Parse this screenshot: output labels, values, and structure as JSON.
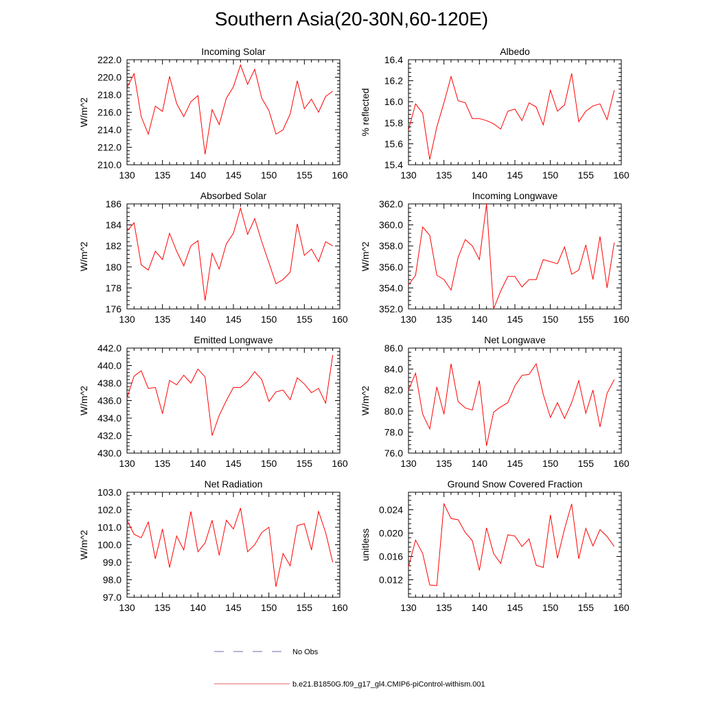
{
  "title": "Southern Asia(20-30N,60-120E)",
  "legend": [
    {
      "label": "No Obs",
      "color": "#6a6ab0",
      "dash": true
    },
    {
      "label": "b.e21.B1850G.f09_g17_gl4.CMIP6-piControl-withism.001",
      "color": "#e06060",
      "dash": false
    }
  ],
  "colors": {
    "series": "#ff0000"
  },
  "chart_data": [
    {
      "type": "line",
      "title": "Incoming Solar",
      "ylabel": "W/m^2",
      "xlim": [
        130,
        160
      ],
      "xticks": [
        130,
        135,
        140,
        145,
        150,
        155,
        160
      ],
      "ylim": [
        210,
        222
      ],
      "yticks": [
        "210.0",
        "212.0",
        "214.0",
        "216.0",
        "218.0",
        "220.0",
        "222.0"
      ],
      "x": [
        130,
        131,
        132,
        133,
        134,
        135,
        136,
        137,
        138,
        139,
        140,
        141,
        142,
        143,
        144,
        145,
        146,
        147,
        148,
        149,
        150,
        151,
        152,
        153,
        154,
        155,
        156,
        157,
        158,
        159
      ],
      "series": [
        {
          "values": [
            218.8,
            220.4,
            215.5,
            213.5,
            216.7,
            216.1,
            220.1,
            217.0,
            215.5,
            217.2,
            217.9,
            211.2,
            216.3,
            214.6,
            217.6,
            218.9,
            221.4,
            219.2,
            220.9,
            217.6,
            216.2,
            213.5,
            214.0,
            215.8,
            219.6,
            216.4,
            217.5,
            216.0,
            217.8,
            218.4
          ]
        }
      ]
    },
    {
      "type": "line",
      "title": "Albedo",
      "ylabel": "% reflected",
      "xlim": [
        130,
        160
      ],
      "xticks": [
        130,
        135,
        140,
        145,
        150,
        155,
        160
      ],
      "ylim": [
        15.4,
        16.4
      ],
      "yticks": [
        "15.4",
        "15.6",
        "15.8",
        "16.0",
        "16.2",
        "16.4"
      ],
      "x": [
        130,
        131,
        132,
        133,
        134,
        135,
        136,
        137,
        138,
        139,
        140,
        141,
        142,
        143,
        144,
        145,
        146,
        147,
        148,
        149,
        150,
        151,
        152,
        153,
        154,
        155,
        156,
        157,
        158,
        159
      ],
      "series": [
        {
          "values": [
            15.73,
            15.98,
            15.89,
            15.45,
            15.76,
            15.99,
            16.24,
            16.01,
            15.99,
            15.84,
            15.84,
            15.82,
            15.79,
            15.74,
            15.91,
            15.93,
            15.82,
            15.99,
            15.95,
            15.78,
            16.11,
            15.91,
            15.97,
            16.27,
            15.81,
            15.91,
            15.96,
            15.98,
            15.83,
            16.11
          ]
        }
      ]
    },
    {
      "type": "line",
      "title": "Absorbed Solar",
      "ylabel": "W/m^2",
      "xlim": [
        130,
        160
      ],
      "xticks": [
        130,
        135,
        140,
        145,
        150,
        155,
        160
      ],
      "ylim": [
        176,
        186
      ],
      "yticks": [
        "176",
        "178",
        "180",
        "182",
        "184",
        "186"
      ],
      "x": [
        130,
        131,
        132,
        133,
        134,
        135,
        136,
        137,
        138,
        139,
        140,
        141,
        142,
        143,
        144,
        145,
        146,
        147,
        148,
        149,
        150,
        151,
        152,
        153,
        154,
        155,
        156,
        157,
        158,
        159
      ],
      "series": [
        {
          "values": [
            183.4,
            184.2,
            180.2,
            179.7,
            181.5,
            180.7,
            183.2,
            181.5,
            180.1,
            182.0,
            182.5,
            176.8,
            181.3,
            179.8,
            182.2,
            183.2,
            185.6,
            183.1,
            184.6,
            182.4,
            180.4,
            178.4,
            178.8,
            179.5,
            184.1,
            181.1,
            181.7,
            180.5,
            182.4,
            182.0
          ]
        }
      ]
    },
    {
      "type": "line",
      "title": "Incoming Longwave",
      "ylabel": "W/m^2",
      "xlim": [
        130,
        160
      ],
      "xticks": [
        130,
        135,
        140,
        145,
        150,
        155,
        160
      ],
      "ylim": [
        352,
        362
      ],
      "yticks": [
        "352.0",
        "354.0",
        "356.0",
        "358.0",
        "360.0",
        "362.0"
      ],
      "x": [
        130,
        131,
        132,
        133,
        134,
        135,
        136,
        137,
        138,
        139,
        140,
        141,
        142,
        143,
        144,
        145,
        146,
        147,
        148,
        149,
        150,
        151,
        152,
        153,
        154,
        155,
        156,
        157,
        158,
        159
      ],
      "series": [
        {
          "values": [
            354.3,
            355.2,
            359.8,
            359.0,
            355.2,
            354.8,
            353.8,
            356.9,
            358.6,
            358.0,
            356.7,
            362.0,
            352.0,
            353.7,
            355.1,
            355.1,
            354.1,
            354.8,
            354.8,
            356.7,
            356.5,
            356.3,
            357.9,
            355.3,
            355.7,
            358.1,
            354.8,
            358.9,
            354.0,
            358.3
          ]
        }
      ]
    },
    {
      "type": "line",
      "title": "Emitted Longwave",
      "ylabel": "W/m^2",
      "xlim": [
        130,
        160
      ],
      "xticks": [
        130,
        135,
        140,
        145,
        150,
        155,
        160
      ],
      "ylim": [
        430,
        442
      ],
      "yticks": [
        "430.0",
        "432.0",
        "434.0",
        "436.0",
        "438.0",
        "440.0",
        "442.0"
      ],
      "x": [
        130,
        131,
        132,
        133,
        134,
        135,
        136,
        137,
        138,
        139,
        140,
        141,
        142,
        143,
        144,
        145,
        146,
        147,
        148,
        149,
        150,
        151,
        152,
        153,
        154,
        155,
        156,
        157,
        158,
        159
      ],
      "series": [
        {
          "values": [
            436.3,
            438.8,
            439.4,
            437.4,
            437.5,
            434.5,
            438.3,
            437.8,
            438.9,
            438.0,
            439.6,
            438.7,
            432.0,
            434.3,
            436.0,
            437.5,
            437.5,
            438.2,
            439.3,
            438.4,
            435.9,
            437.0,
            437.2,
            436.1,
            438.6,
            437.9,
            436.9,
            437.4,
            435.7,
            441.2
          ]
        }
      ]
    },
    {
      "type": "line",
      "title": "Net Longwave",
      "ylabel": "W/m^2",
      "xlim": [
        130,
        160
      ],
      "xticks": [
        130,
        135,
        140,
        145,
        150,
        155,
        160
      ],
      "ylim": [
        76,
        86
      ],
      "yticks": [
        "76.0",
        "78.0",
        "80.0",
        "82.0",
        "84.0",
        "86.0"
      ],
      "x": [
        130,
        131,
        132,
        133,
        134,
        135,
        136,
        137,
        138,
        139,
        140,
        141,
        142,
        143,
        144,
        145,
        146,
        147,
        148,
        149,
        150,
        151,
        152,
        153,
        154,
        155,
        156,
        157,
        158,
        159
      ],
      "series": [
        {
          "values": [
            82.0,
            83.6,
            79.7,
            78.3,
            82.3,
            79.7,
            84.5,
            80.9,
            80.3,
            80.1,
            82.9,
            76.7,
            79.9,
            80.4,
            80.8,
            82.4,
            83.4,
            83.5,
            84.5,
            81.6,
            79.4,
            80.8,
            79.3,
            80.8,
            82.9,
            79.8,
            82.0,
            78.5,
            81.7,
            83.0
          ]
        }
      ]
    },
    {
      "type": "line",
      "title": "Net Radiation",
      "ylabel": "W/m^2",
      "xlim": [
        130,
        160
      ],
      "xticks": [
        130,
        135,
        140,
        145,
        150,
        155,
        160
      ],
      "ylim": [
        97,
        103
      ],
      "yticks": [
        "97.0",
        "98.0",
        "99.0",
        "100.0",
        "101.0",
        "102.0",
        "103.0"
      ],
      "x": [
        130,
        131,
        132,
        133,
        134,
        135,
        136,
        137,
        138,
        139,
        140,
        141,
        142,
        143,
        144,
        145,
        146,
        147,
        148,
        149,
        150,
        151,
        152,
        153,
        154,
        155,
        156,
        157,
        158,
        159
      ],
      "series": [
        {
          "values": [
            101.4,
            100.6,
            100.4,
            101.3,
            99.2,
            100.9,
            98.7,
            100.5,
            99.7,
            101.9,
            99.6,
            100.1,
            101.4,
            99.4,
            101.4,
            100.9,
            102.1,
            99.6,
            100.0,
            100.7,
            101.0,
            97.6,
            99.5,
            98.8,
            101.1,
            101.2,
            99.7,
            101.9,
            100.7,
            99.0
          ]
        }
      ]
    },
    {
      "type": "line",
      "title": "Ground Snow Covered Fraction",
      "ylabel": "unitless",
      "xlim": [
        130,
        160
      ],
      "xticks": [
        130,
        135,
        140,
        145,
        150,
        155,
        160
      ],
      "ylim": [
        0.009,
        0.027
      ],
      "yticks": [
        "0.012",
        "0.016",
        "0.020",
        "0.024"
      ],
      "x": [
        130,
        131,
        132,
        133,
        134,
        135,
        136,
        137,
        138,
        139,
        140,
        141,
        142,
        143,
        144,
        145,
        146,
        147,
        148,
        149,
        150,
        151,
        152,
        153,
        154,
        155,
        156,
        157,
        158,
        159
      ],
      "series": [
        {
          "values": [
            0.0142,
            0.0188,
            0.0165,
            0.0111,
            0.011,
            0.025,
            0.0225,
            0.0223,
            0.0201,
            0.0187,
            0.0136,
            0.0209,
            0.0165,
            0.0148,
            0.0197,
            0.0195,
            0.0177,
            0.019,
            0.0145,
            0.0141,
            0.0231,
            0.0157,
            0.0207,
            0.025,
            0.0156,
            0.0208,
            0.0178,
            0.0206,
            0.0194,
            0.0177
          ]
        }
      ]
    }
  ]
}
